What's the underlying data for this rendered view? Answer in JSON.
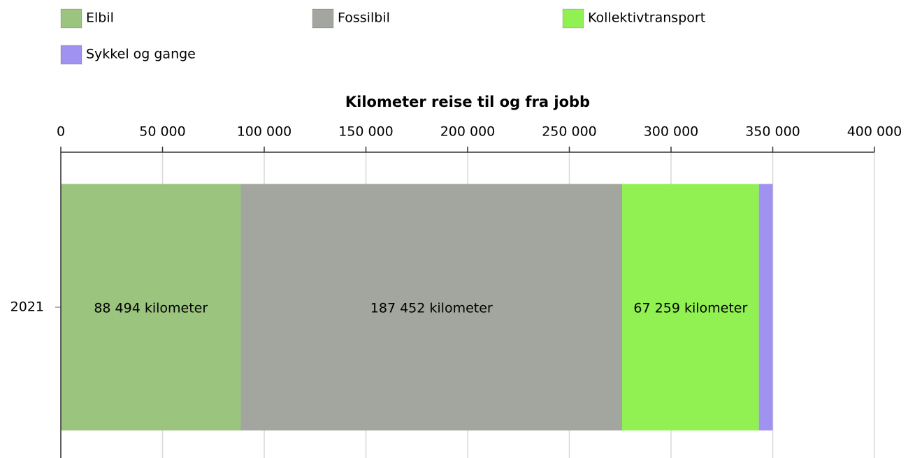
{
  "chart_data": {
    "type": "bar",
    "orientation": "horizontal",
    "stacked": true,
    "title": "Kilometer reise til og fra jobb",
    "categories": [
      "2021"
    ],
    "series": [
      {
        "name": "Elbil",
        "color": "#9bc47f",
        "values": [
          88494
        ],
        "value_labels": [
          "88 494 kilometer"
        ]
      },
      {
        "name": "Fossilbil",
        "color": "#a3a59f",
        "values": [
          187452
        ],
        "value_labels": [
          "187 452 kilometer"
        ]
      },
      {
        "name": "Kollektivtransport",
        "color": "#91f052",
        "values": [
          67259
        ],
        "value_labels": [
          "67 259 kilometer"
        ]
      },
      {
        "name": "Sykkel og gange",
        "color": "#9f92f0",
        "values": [
          6800
        ]
      }
    ],
    "xlim": [
      0,
      400000
    ],
    "xticks": [
      0,
      {
        "value": 50000,
        "label": "50 000"
      },
      {
        "value": 100000,
        "label": "100 000"
      },
      {
        "value": 150000,
        "label": "150 000"
      },
      {
        "value": 200000,
        "label": "200 000"
      },
      {
        "value": 250000,
        "label": "250 000"
      },
      {
        "value": 300000,
        "label": "300 000"
      },
      {
        "value": 350000,
        "label": "350 000"
      },
      {
        "value": 400000,
        "label": "400 000"
      }
    ],
    "grid": true,
    "legend": "top"
  }
}
